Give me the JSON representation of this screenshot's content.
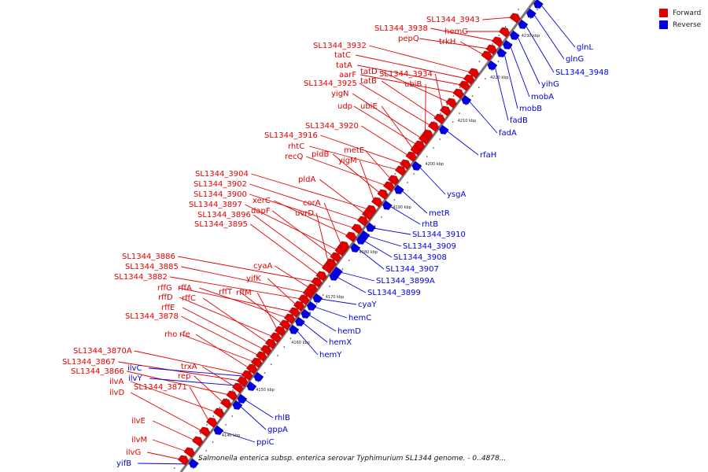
{
  "caption": "Salmonella enterica subsp. enterica serovar Typhimurium SL1344 genome. - 0..4878...",
  "legend": {
    "forward": {
      "label": "Forward",
      "color": "#e00000"
    },
    "reverse": {
      "label": "Reverse",
      "color": "#0000e0"
    }
  },
  "ticks": [
    "4140 kbp",
    "4150 kbp",
    "4160 kbp",
    "4170 kbp",
    "4180 kbp",
    "4190 kbp",
    "4200 kbp",
    "4210 kbp",
    "4220 kbp",
    "4230 kbp"
  ],
  "forward_genes": [
    "SL1344_3943",
    "hemG",
    "SL1344_3938",
    "pepQ",
    "trkH",
    "SL1344_3932",
    "tatC",
    "tatA",
    "aarF",
    "tatD",
    "SL1344_3934",
    "tatB",
    "SL1344_3925",
    "ubiB",
    "yigN",
    "udp",
    "ubiE",
    "SL1344_3920",
    "SL1344_3916",
    "rhtC",
    "metE",
    "recQ",
    "pldB",
    "yigM",
    "SL1344_3904",
    "pldA",
    "SL1344_3902",
    "SL1344_3900",
    "xerC",
    "corA",
    "SL1344_3897",
    "dapF",
    "uvrD",
    "SL1344_3896",
    "SL1344_3895",
    "SL1344_3886",
    "cyaA",
    "SL1344_3885",
    "SL1344_3882",
    "yifK",
    "rffG",
    "rffA",
    "rffT",
    "rffM",
    "rffD",
    "rffC",
    "rffE",
    "SL1344_3878",
    "rho",
    "rfe",
    "SL1344_3870A",
    "SL1344_3867",
    "trxA",
    "SL1344_3866",
    "rep",
    "ilvA",
    "SL1344_3871",
    "ilvD",
    "ilvE",
    "ilvM",
    "ilvG"
  ],
  "reverse_genes": [
    "glnL",
    "glnG",
    "SL1344_3948",
    "yihG",
    "mobA",
    "mobB",
    "fadB",
    "fadA",
    "rfaH",
    "ysgA",
    "metR",
    "rhtB",
    "SL1344_3910",
    "SL1344_3909",
    "SL1344_3908",
    "SL1344_3907",
    "SL1344_3899A",
    "SL1344_3899",
    "cyaY",
    "hemC",
    "hemD",
    "hemX",
    "hemY",
    "ilvC",
    "ilvY",
    "rhlB",
    "gppA",
    "ppiC",
    "yifB"
  ]
}
